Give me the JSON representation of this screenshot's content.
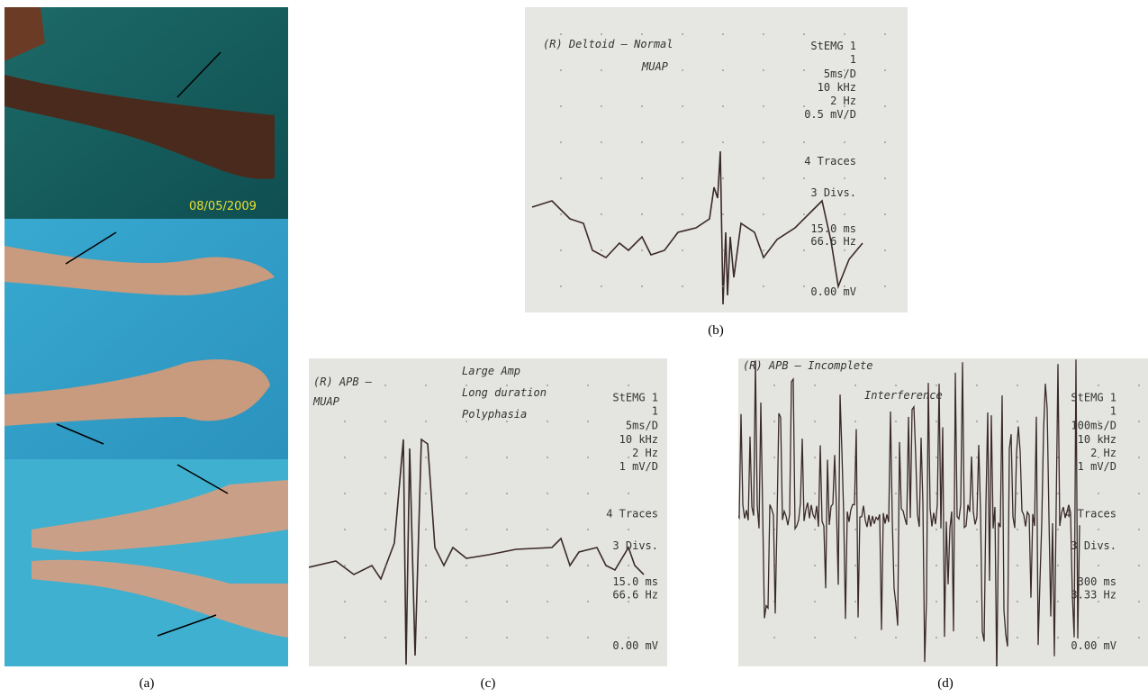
{
  "panel_a": {
    "label": "(a)",
    "date_stamp": "08/05/2009"
  },
  "panel_b": {
    "label": "(b)",
    "handwriting": [
      "(R) Deltoid – Normal",
      "MUAP"
    ],
    "screen": [
      "StEMG 1",
      "1",
      "5ms/D",
      "10 kHz",
      "2 Hz",
      "0.5 mV/D",
      "4 Traces",
      "3 Divs.",
      "15.0  ms",
      "66.6  Hz",
      "0.00 mV"
    ]
  },
  "panel_c": {
    "label": "(c)",
    "handwriting": [
      "(R) APB –",
      "MUAP",
      "Large Amp",
      "Long duration",
      "Polyphasia"
    ],
    "screen": [
      "StEMG 1",
      "1",
      "5ms/D",
      "10 kHz",
      "2 Hz",
      "1 mV/D",
      "4 Traces",
      "3 Divs.",
      "15.0  ms",
      "66.6  Hz",
      "0.00 mV"
    ]
  },
  "panel_d": {
    "label": "(d)",
    "handwriting": [
      "(R) APB – Incomplete",
      "Interference"
    ],
    "screen": [
      "StEMG 1",
      "1",
      "100ms/D",
      "10 kHz",
      "2 Hz",
      "1 mV/D",
      "4 Traces",
      "3 Divs.",
      "300  ms",
      "3.33  Hz",
      "0.00 mV"
    ]
  }
}
